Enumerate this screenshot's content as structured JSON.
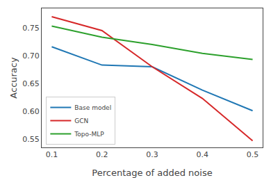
{
  "chart_data": {
    "type": "line",
    "xlabel": "Percentage of added noise",
    "ylabel": "Accuracy",
    "x": [
      0.1,
      0.2,
      0.3,
      0.4,
      0.5
    ],
    "series": [
      {
        "name": "Base model",
        "color": "#1f77b4",
        "values": [
          0.716,
          0.683,
          0.68,
          0.638,
          0.601
        ]
      },
      {
        "name": "GCN",
        "color": "#d62728",
        "values": [
          0.77,
          0.745,
          0.68,
          0.623,
          0.547
        ]
      },
      {
        "name": "Topo-MLP",
        "color": "#2ca02c",
        "values": [
          0.753,
          0.733,
          0.72,
          0.704,
          0.693
        ]
      }
    ],
    "xlim": [
      0.08,
      0.52
    ],
    "ylim": [
      0.535,
      0.785
    ],
    "xticks": [
      0.1,
      0.2,
      0.3,
      0.4,
      0.5
    ],
    "yticks": [
      0.55,
      {
        "value": 0.6,
        "label": "0.60"
      },
      0.65,
      {
        "value": 0.7,
        "label": "0.70"
      },
      0.75
    ],
    "grid": false,
    "legend": "lower left"
  }
}
